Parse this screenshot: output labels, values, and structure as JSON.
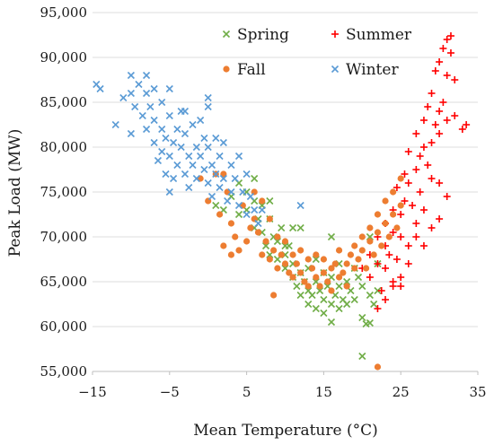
{
  "chart_data": {
    "type": "scatter",
    "title": "",
    "xlabel": "Mean Temperature (°C)",
    "ylabel": "Peak Load (MW)",
    "xlim": [
      -15,
      35
    ],
    "ylim": [
      55000,
      95000
    ],
    "xticks": [
      -15,
      -5,
      5,
      15,
      25,
      35
    ],
    "xtick_labels": [
      "−15",
      "−5",
      "5",
      "15",
      "25",
      "35"
    ],
    "yticks": [
      55000,
      60000,
      65000,
      70000,
      75000,
      80000,
      85000,
      90000,
      95000
    ],
    "ytick_labels": [
      "55,000",
      "60,000",
      "65,000",
      "70,000",
      "75,000",
      "80,000",
      "85,000",
      "90,000",
      "95,000"
    ],
    "grid": "horizontal",
    "legend_position": "top-center",
    "series": [
      {
        "name": "Spring",
        "marker": "x",
        "color": "#70ad47",
        "points": [
          [
            1,
            73500
          ],
          [
            2,
            73000
          ],
          [
            3,
            74500
          ],
          [
            4,
            72500
          ],
          [
            4,
            76000
          ],
          [
            5,
            75000
          ],
          [
            5,
            73000
          ],
          [
            6,
            71000
          ],
          [
            6,
            74000
          ],
          [
            6.5,
            72000
          ],
          [
            7,
            70500
          ],
          [
            7,
            73500
          ],
          [
            7.5,
            69000
          ],
          [
            8,
            72000
          ],
          [
            8,
            68000
          ],
          [
            8.5,
            70000
          ],
          [
            9,
            69500
          ],
          [
            9,
            67500
          ],
          [
            9.5,
            71000
          ],
          [
            10,
            68000
          ],
          [
            10,
            66500
          ],
          [
            10.5,
            69000
          ],
          [
            11,
            65500
          ],
          [
            11,
            67000
          ],
          [
            11.5,
            64500
          ],
          [
            12,
            66000
          ],
          [
            12,
            63500
          ],
          [
            12,
            71000
          ],
          [
            12.5,
            65000
          ],
          [
            13,
            64000
          ],
          [
            13,
            62500
          ],
          [
            13,
            66500
          ],
          [
            13.5,
            63500
          ],
          [
            14,
            65000
          ],
          [
            14,
            62000
          ],
          [
            14,
            67500
          ],
          [
            14.5,
            64000
          ],
          [
            15,
            63000
          ],
          [
            15,
            61500
          ],
          [
            15,
            66000
          ],
          [
            15.5,
            64500
          ],
          [
            16,
            62500
          ],
          [
            16,
            60500
          ],
          [
            16,
            65500
          ],
          [
            16.5,
            63500
          ],
          [
            17,
            62000
          ],
          [
            17,
            64500
          ],
          [
            17,
            67000
          ],
          [
            17.5,
            63000
          ],
          [
            18,
            65000
          ],
          [
            18,
            62500
          ],
          [
            18.5,
            64000
          ],
          [
            19,
            66500
          ],
          [
            19,
            63000
          ],
          [
            19.5,
            65500
          ],
          [
            20,
            61000
          ],
          [
            20,
            64500
          ],
          [
            20.5,
            60300
          ],
          [
            21,
            60400
          ],
          [
            21,
            63500
          ],
          [
            21.5,
            62500
          ],
          [
            22,
            64000
          ],
          [
            22,
            67000
          ],
          [
            20,
            56700
          ],
          [
            21,
            70000
          ],
          [
            16,
            70000
          ],
          [
            8,
            74000
          ],
          [
            6,
            76500
          ],
          [
            10,
            69000
          ],
          [
            11,
            71000
          ]
        ]
      },
      {
        "name": "Summer",
        "marker": "+",
        "color": "#ff0000",
        "points": [
          [
            20,
            66500
          ],
          [
            21,
            68000
          ],
          [
            21,
            65500
          ],
          [
            22,
            67000
          ],
          [
            22,
            70000
          ],
          [
            22.5,
            64000
          ],
          [
            23,
            69000
          ],
          [
            23,
            66500
          ],
          [
            23,
            71500
          ],
          [
            23.5,
            68000
          ],
          [
            24,
            64500
          ],
          [
            24,
            70500
          ],
          [
            24,
            73000
          ],
          [
            24.5,
            67500
          ],
          [
            24.5,
            75500
          ],
          [
            25,
            70000
          ],
          [
            25,
            72500
          ],
          [
            25,
            65500
          ],
          [
            25.5,
            74000
          ],
          [
            25.5,
            77000
          ],
          [
            26,
            69000
          ],
          [
            26,
            79500
          ],
          [
            26,
            76000
          ],
          [
            26.5,
            73500
          ],
          [
            27,
            81500
          ],
          [
            27,
            71500
          ],
          [
            27,
            77500
          ],
          [
            27.5,
            75000
          ],
          [
            27.5,
            79000
          ],
          [
            28,
            80000
          ],
          [
            28,
            83000
          ],
          [
            28,
            73000
          ],
          [
            28.5,
            78000
          ],
          [
            28.5,
            84500
          ],
          [
            29,
            80500
          ],
          [
            29,
            86000
          ],
          [
            29,
            76500
          ],
          [
            29.5,
            82500
          ],
          [
            29.5,
            88500
          ],
          [
            30,
            84000
          ],
          [
            30,
            81500
          ],
          [
            30,
            89500
          ],
          [
            30.5,
            85000
          ],
          [
            30.5,
            91000
          ],
          [
            31,
            88000
          ],
          [
            31,
            83000
          ],
          [
            31,
            92000
          ],
          [
            31.5,
            90500
          ],
          [
            31.5,
            92400
          ],
          [
            32,
            83500
          ],
          [
            32,
            87500
          ],
          [
            33,
            82000
          ],
          [
            33.5,
            82500
          ],
          [
            27,
            70000
          ],
          [
            28,
            69000
          ],
          [
            29,
            71000
          ],
          [
            30,
            72000
          ],
          [
            26,
            67000
          ],
          [
            25,
            64500
          ],
          [
            24,
            65000
          ],
          [
            22,
            62000
          ],
          [
            23,
            63000
          ],
          [
            30,
            76000
          ],
          [
            31,
            74500
          ]
        ]
      },
      {
        "name": "Fall",
        "marker": "o",
        "color": "#ed7d31",
        "points": [
          [
            -1,
            76500
          ],
          [
            0,
            74000
          ],
          [
            1,
            77000
          ],
          [
            1.5,
            72500
          ],
          [
            2,
            69000
          ],
          [
            2.5,
            75000
          ],
          [
            3,
            71500
          ],
          [
            3.5,
            70000
          ],
          [
            4,
            68500
          ],
          [
            4.5,
            73500
          ],
          [
            5,
            69500
          ],
          [
            5.5,
            71000
          ],
          [
            6,
            75000
          ],
          [
            6,
            72000
          ],
          [
            6.5,
            70500
          ],
          [
            7,
            68000
          ],
          [
            7,
            74000
          ],
          [
            7.5,
            69500
          ],
          [
            8,
            67500
          ],
          [
            8,
            72000
          ],
          [
            8.5,
            68500
          ],
          [
            9,
            70000
          ],
          [
            9,
            66500
          ],
          [
            9.5,
            68000
          ],
          [
            10,
            67000
          ],
          [
            10,
            69500
          ],
          [
            10.5,
            66000
          ],
          [
            11,
            68000
          ],
          [
            11,
            65500
          ],
          [
            11.5,
            67000
          ],
          [
            12,
            66000
          ],
          [
            12,
            68500
          ],
          [
            12.5,
            65000
          ],
          [
            13,
            67500
          ],
          [
            13,
            64500
          ],
          [
            13.5,
            66500
          ],
          [
            14,
            65500
          ],
          [
            14,
            68000
          ],
          [
            14.5,
            64500
          ],
          [
            15,
            66000
          ],
          [
            15,
            67500
          ],
          [
            15.5,
            65000
          ],
          [
            16,
            66500
          ],
          [
            16,
            64000
          ],
          [
            16.5,
            67000
          ],
          [
            17,
            65500
          ],
          [
            17,
            68500
          ],
          [
            17.5,
            66000
          ],
          [
            18,
            67000
          ],
          [
            18,
            64500
          ],
          [
            18.5,
            68000
          ],
          [
            19,
            66500
          ],
          [
            19,
            69000
          ],
          [
            19.5,
            67500
          ],
          [
            20,
            68500
          ],
          [
            20,
            70000
          ],
          [
            20.5,
            66500
          ],
          [
            21,
            69500
          ],
          [
            21,
            71000
          ],
          [
            21.5,
            68000
          ],
          [
            22,
            70500
          ],
          [
            22,
            72500
          ],
          [
            22.5,
            69000
          ],
          [
            23,
            71500
          ],
          [
            23,
            74000
          ],
          [
            23.5,
            70000
          ],
          [
            24,
            72500
          ],
          [
            24,
            75000
          ],
          [
            24.5,
            71000
          ],
          [
            25,
            73500
          ],
          [
            25,
            76500
          ],
          [
            22,
            55500
          ],
          [
            8.5,
            63500
          ],
          [
            3,
            68000
          ],
          [
            2,
            77000
          ]
        ]
      },
      {
        "name": "Winter",
        "marker": "x",
        "color": "#5b9bd5",
        "points": [
          [
            -14.5,
            87000
          ],
          [
            -14,
            86500
          ],
          [
            -12,
            82500
          ],
          [
            -11,
            85500
          ],
          [
            -10,
            88000
          ],
          [
            -10,
            86000
          ],
          [
            -9.5,
            84500
          ],
          [
            -9,
            87000
          ],
          [
            -8.5,
            83500
          ],
          [
            -8,
            86000
          ],
          [
            -8,
            82000
          ],
          [
            -7.5,
            84500
          ],
          [
            -7,
            80500
          ],
          [
            -7,
            83000
          ],
          [
            -6.5,
            78500
          ],
          [
            -6,
            82000
          ],
          [
            -6,
            79500
          ],
          [
            -5.5,
            81000
          ],
          [
            -5.5,
            77000
          ],
          [
            -5,
            83500
          ],
          [
            -5,
            79000
          ],
          [
            -5,
            86500
          ],
          [
            -4.5,
            80500
          ],
          [
            -4.5,
            76500
          ],
          [
            -4,
            82000
          ],
          [
            -4,
            78000
          ],
          [
            -3.5,
            84000
          ],
          [
            -3.5,
            80000
          ],
          [
            -3,
            77000
          ],
          [
            -3,
            81500
          ],
          [
            -2.5,
            79000
          ],
          [
            -2.5,
            75500
          ],
          [
            -2,
            82500
          ],
          [
            -2,
            78000
          ],
          [
            -1.5,
            80000
          ],
          [
            -1.5,
            76500
          ],
          [
            -1,
            83000
          ],
          [
            -1,
            79000
          ],
          [
            -0.5,
            77500
          ],
          [
            -0.5,
            81000
          ],
          [
            0,
            76000
          ],
          [
            0,
            80000
          ],
          [
            0,
            84500
          ],
          [
            0.5,
            78000
          ],
          [
            0.5,
            74500
          ],
          [
            1,
            81000
          ],
          [
            1,
            77000
          ],
          [
            1.5,
            79000
          ],
          [
            1.5,
            75500
          ],
          [
            2,
            76500
          ],
          [
            2,
            80500
          ],
          [
            2.5,
            74000
          ],
          [
            3,
            78000
          ],
          [
            3,
            75000
          ],
          [
            3.5,
            76500
          ],
          [
            4,
            73500
          ],
          [
            4,
            79000
          ],
          [
            4.5,
            75000
          ],
          [
            5,
            72500
          ],
          [
            5,
            77000
          ],
          [
            5.5,
            74500
          ],
          [
            6,
            73000
          ],
          [
            6.5,
            71500
          ],
          [
            7,
            73000
          ],
          [
            -7,
            86500
          ],
          [
            -8,
            88000
          ],
          [
            -3,
            84000
          ],
          [
            0,
            85500
          ],
          [
            -5,
            75000
          ],
          [
            12,
            73500
          ],
          [
            -10,
            81500
          ],
          [
            -6,
            85000
          ]
        ]
      }
    ]
  },
  "legend": {
    "items": [
      {
        "label": "Spring",
        "marker": "x",
        "color": "#70ad47"
      },
      {
        "label": "Summer",
        "marker": "+",
        "color": "#ff0000"
      },
      {
        "label": "Fall",
        "marker": "o",
        "color": "#ed7d31"
      },
      {
        "label": "Winter",
        "marker": "x",
        "color": "#5b9bd5"
      }
    ]
  }
}
